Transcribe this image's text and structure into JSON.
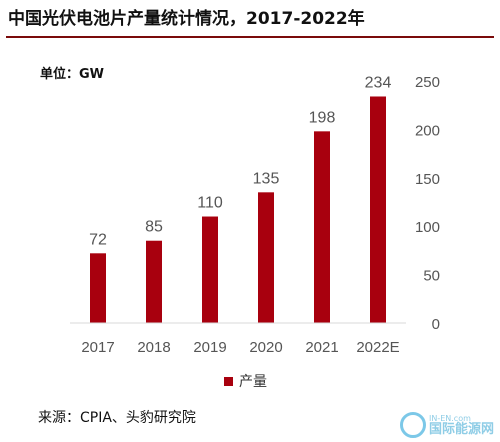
{
  "header": {
    "title": "中国光伏电池片产量统计情况，2017-2022年",
    "unit": "单位：GW"
  },
  "footer": {
    "source": "来源：CPIA、头豹研究院"
  },
  "watermark": {
    "text_en": "IN-EN.com",
    "text_cn": "国际能源网"
  },
  "colors": {
    "bar": "#a8000e",
    "accent_rule": "#7a0a0a"
  },
  "chart_data": {
    "type": "bar",
    "categories": [
      "2017",
      "2018",
      "2019",
      "2020",
      "2021",
      "2022E"
    ],
    "series": [
      {
        "name": "产量",
        "values": [
          72,
          85,
          110,
          135,
          198,
          234
        ]
      }
    ],
    "data_labels": [
      "72",
      "85",
      "110",
      "135",
      "198",
      "234"
    ],
    "y_ticks": [
      "0",
      "50",
      "100",
      "150",
      "200",
      "250"
    ],
    "ylim": [
      0,
      250
    ],
    "y_axis_position": "right",
    "grid": false,
    "legend_position": "bottom"
  }
}
